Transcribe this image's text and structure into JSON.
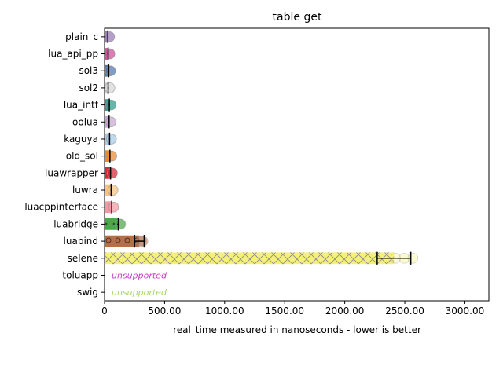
{
  "chart_data": {
    "type": "bar",
    "orientation": "horizontal",
    "title": "table get",
    "xlabel": "real_time measured in nanoseconds - lower is better",
    "ylabel": "",
    "xlim": [
      0,
      3200
    ],
    "xticks": [
      0,
      500,
      1000,
      1500,
      2000,
      2500,
      3000
    ],
    "xtick_labels": [
      "0",
      "500.00",
      "1000.00",
      "1500.00",
      "2000.00",
      "2500.00",
      "3000.00"
    ],
    "grid": false,
    "legend": "none",
    "categories": [
      "plain_c",
      "lua_api_pp",
      "sol3",
      "sol2",
      "lua_intf",
      "oolua",
      "kaguya",
      "old_sol",
      "luawrapper",
      "luwra",
      "luacppinterface",
      "luabridge",
      "luabind",
      "selene",
      "toluapp",
      "swig"
    ],
    "bars": [
      {
        "name": "plain_c",
        "value": 28,
        "err": 5,
        "color": "#9c7bb5",
        "hatch": "none",
        "supported": true
      },
      {
        "name": "lua_api_pp",
        "value": 30,
        "err": 5,
        "color": "#cc4f96",
        "hatch": "none",
        "supported": true
      },
      {
        "name": "sol3",
        "value": 35,
        "err": 5,
        "color": "#4f78b0",
        "hatch": "none",
        "supported": true
      },
      {
        "name": "sol2",
        "value": 30,
        "err": 5,
        "color": "#d8d8d8",
        "hatch": "none",
        "supported": true
      },
      {
        "name": "lua_intf",
        "value": 40,
        "err": 5,
        "color": "#2f9c8c",
        "hatch": "none",
        "supported": true
      },
      {
        "name": "oolua",
        "value": 38,
        "err": 5,
        "color": "#c9a9d1",
        "hatch": "none",
        "supported": true
      },
      {
        "name": "kaguya",
        "value": 42,
        "err": 5,
        "color": "#a9cce6",
        "hatch": "none",
        "supported": true
      },
      {
        "name": "old_sol",
        "value": 45,
        "err": 5,
        "color": "#ef8a2a",
        "hatch": "none",
        "supported": true
      },
      {
        "name": "luawrapper",
        "value": 50,
        "err": 5,
        "color": "#d62939",
        "hatch": "none",
        "supported": true
      },
      {
        "name": "luwra",
        "value": 55,
        "err": 5,
        "color": "#f7c685",
        "hatch": "none",
        "supported": true
      },
      {
        "name": "luacppinterface",
        "value": 60,
        "err": 5,
        "color": "#f29aa3",
        "hatch": "none",
        "supported": true
      },
      {
        "name": "luabridge",
        "value": 115,
        "err": 10,
        "color": "#4aa84a",
        "hatch": "dots",
        "supported": true
      },
      {
        "name": "luabind",
        "value": 290,
        "err": 40,
        "color": "#b46f4a",
        "hatch": "circles",
        "supported": true
      },
      {
        "name": "selene",
        "value": 2410,
        "err": 140,
        "color": "#f5f07a",
        "hatch": "cross",
        "supported": true
      },
      {
        "name": "toluapp",
        "value": null,
        "err": null,
        "color": "#c93fc9",
        "hatch": "none",
        "supported": false,
        "note": "unsupported"
      },
      {
        "name": "swig",
        "value": null,
        "err": null,
        "color": "#a8d86a",
        "hatch": "none",
        "supported": false,
        "note": "unsupported"
      }
    ]
  }
}
